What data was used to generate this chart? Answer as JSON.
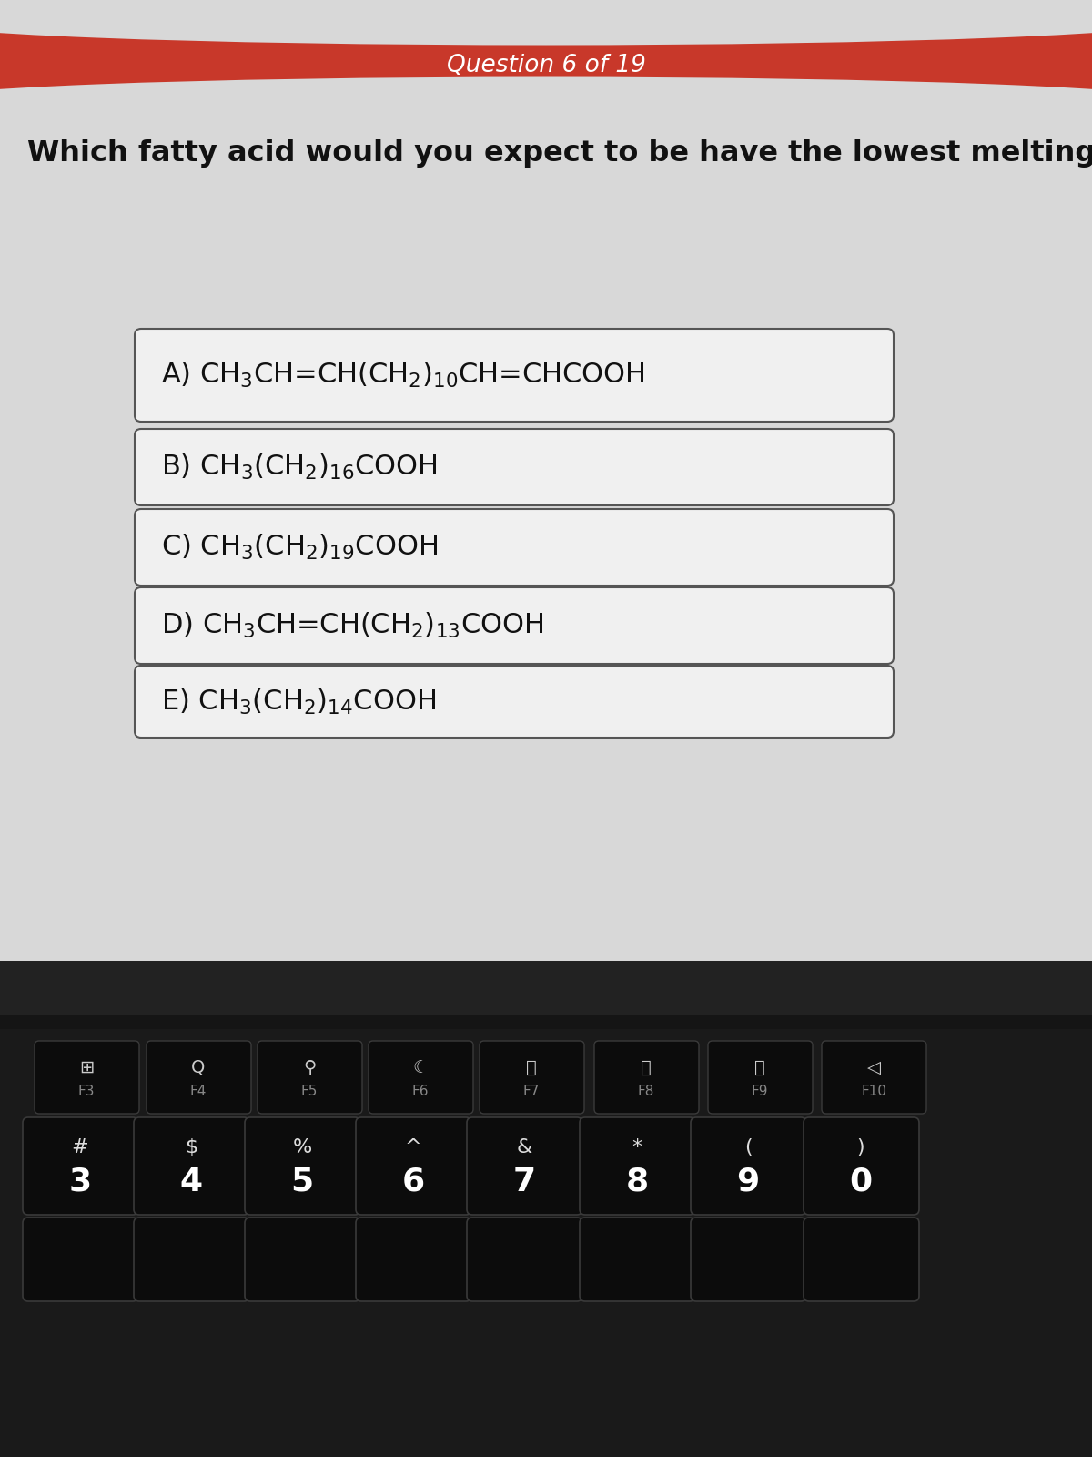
{
  "question_header": "Question 6 of 19",
  "question_text": "Which fatty acid would you expect to be have the lowest melting point?",
  "header_bg_color": "#C8382A",
  "header_text_color": "#FFFFFF",
  "page_bg_color": "#D8D8D8",
  "box_bg_color": "#F0F0F0",
  "box_border_color": "#555555",
  "option_texts": [
    "A) CH$_3$CH=CH(CH$_2$)$_{10}$CH=CHCOOH",
    "B) CH$_3$(CH$_2$)$_{16}$COOH",
    "C) CH$_3$(CH$_2$)$_{19}$COOH",
    "D) CH$_3$CH=CH(CH$_2$)$_{13}$COOH",
    "E) CH$_3$(CH$_2$)$_{14}$COOH"
  ],
  "keyboard_bg": "#111111",
  "keyboard_surface": "#1A1A1A",
  "key_face_color": "#0A0A0A",
  "key_edge_color": "#3A3A3A",
  "key_text_color": "#FFFFFF",
  "key_fn_text_color": "#AAAAAA",
  "fn_icons": [
    "肀",
    "Q",
    "⤓",
    "☽",
    "⏮",
    "⏯",
    "⏭",
    "◄"
  ],
  "fn_labels": [
    "F3",
    "F4",
    "F5",
    "F6",
    "F7",
    "F8",
    "F9",
    "F10"
  ],
  "num_syms": [
    "#",
    "$",
    "%",
    "^",
    "&",
    "*",
    "(",
    ")"
  ],
  "num_chars": [
    "3",
    "4",
    "5",
    "6",
    "7",
    "8",
    "9",
    "0"
  ],
  "fig_width": 12.0,
  "fig_height": 16.0
}
